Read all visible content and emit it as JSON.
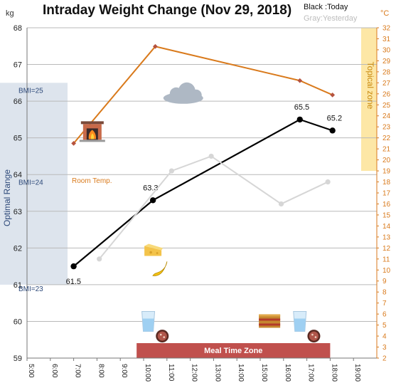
{
  "chart_data": {
    "type": "line",
    "title": "Intraday Weight Change (Nov 29, 2018)",
    "legend": {
      "black": "Black :Today",
      "gray": "Gray:Yesterday"
    },
    "y_left": {
      "unit": "kg",
      "min": 59,
      "max": 68,
      "step": 1
    },
    "y_right": {
      "unit": "°C",
      "min": 2,
      "max": 32,
      "step": 1
    },
    "x_axis": {
      "min": 5,
      "max": 20,
      "ticks": [
        {
          "v": 5,
          "label": "5:00"
        },
        {
          "v": 6,
          "label": "6:00"
        },
        {
          "v": 7,
          "label": "7:00"
        },
        {
          "v": 8,
          "label": "8:00"
        },
        {
          "v": 9,
          "label": "9:00"
        },
        {
          "v": 10,
          "label": "10:00"
        },
        {
          "v": 11,
          "label": "11:00"
        },
        {
          "v": 12,
          "label": "12:00"
        },
        {
          "v": 13,
          "label": "13:00"
        },
        {
          "v": 14,
          "label": "14:00"
        },
        {
          "v": 15,
          "label": "15:00"
        },
        {
          "v": 16,
          "label": "16:00"
        },
        {
          "v": 17,
          "label": "17:00"
        },
        {
          "v": 18,
          "label": "18:00"
        },
        {
          "v": 19,
          "label": "19:00"
        }
      ]
    },
    "series": [
      {
        "name": "Today",
        "axis": "left",
        "color": "#000000",
        "x": [
          7.0,
          10.4,
          16.7,
          18.1
        ],
        "y": [
          61.5,
          63.3,
          65.5,
          65.2
        ],
        "labels": [
          "61.5",
          "63.3",
          "65.5",
          "65.2"
        ]
      },
      {
        "name": "Yesterday",
        "axis": "left",
        "color": "#d6d6d6",
        "x": [
          8.1,
          11.2,
          12.9,
          15.9,
          17.9
        ],
        "y": [
          61.7,
          64.1,
          64.5,
          63.2,
          63.8
        ]
      },
      {
        "name": "Room Temp.",
        "axis": "right",
        "color": "#d97a1c",
        "x": [
          7.0,
          10.5,
          16.7,
          18.1
        ],
        "y": [
          21.5,
          30.3,
          27.2,
          25.9
        ]
      }
    ],
    "bands": {
      "optimal": {
        "label": "Optimal Range",
        "y_from": 61,
        "y_to": 66.5,
        "color": "#dde4ed"
      },
      "tropical": {
        "label": "Topical zone",
        "t_from": 19,
        "t_to": 32,
        "color": "#fde7a6"
      }
    },
    "bmi_marks": [
      {
        "label": "BMI=25",
        "y": 66.3
      },
      {
        "label": "BMI=24",
        "y": 63.8
      },
      {
        "label": "BMI=23",
        "y": 60.9
      }
    ],
    "room_label": "Room Temp.",
    "meal_zone": {
      "label": "Meal Time Zone",
      "x_from": 9.7,
      "x_to": 18.0,
      "color": "#c0504d"
    },
    "icons": [
      {
        "name": "fireplace-icon",
        "x": 7.8,
        "y": 65.2
      },
      {
        "name": "cloud-icon",
        "x": 11.7,
        "y": 66.2
      },
      {
        "name": "cheese-icon",
        "x": 10.4,
        "y": 61.9
      },
      {
        "name": "banana-icon",
        "x": 10.7,
        "y": 61.4
      },
      {
        "name": "water-glass-icon",
        "x": 10.2,
        "y": 60.0
      },
      {
        "name": "sausage-icon",
        "x": 10.8,
        "y": 59.6
      },
      {
        "name": "lasagna-icon",
        "x": 15.4,
        "y": 60.0
      },
      {
        "name": "water-glass-icon",
        "x": 16.7,
        "y": 60.0
      },
      {
        "name": "sausage-icon",
        "x": 17.3,
        "y": 59.6
      }
    ]
  }
}
